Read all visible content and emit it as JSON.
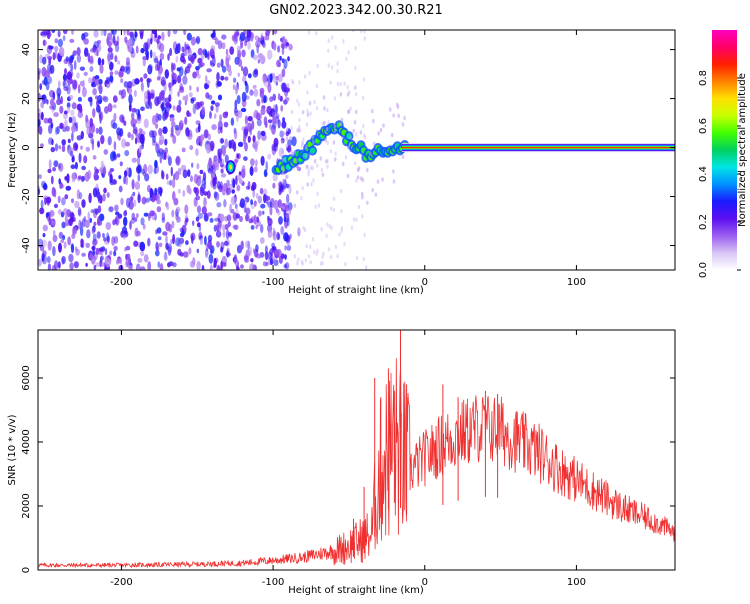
{
  "title": "GN02.2023.342.00.30.R21",
  "chart_data": [
    {
      "type": "heatmap",
      "xlabel": "Height of straight line (km)",
      "ylabel": "Frequency (Hz)",
      "xlim": [
        -255,
        165
      ],
      "ylim": [
        -50,
        48
      ],
      "x_ticks": [
        -200,
        -100,
        0,
        100
      ],
      "y_ticks": [
        -40,
        -20,
        0,
        20,
        40
      ],
      "grid": false,
      "colorbar": {
        "label": "Normalized spectral amplitude",
        "range": [
          0,
          1
        ],
        "ticks": [
          "0.0",
          "0.2",
          "0.4",
          "0.6",
          "0.8"
        ],
        "colors": [
          "#ffffff",
          "#d9c6f5",
          "#9b5cf0",
          "#5b0ff0",
          "#1a1aff",
          "#0090ff",
          "#00e5e5",
          "#00d060",
          "#40ff00",
          "#c8ff00",
          "#ffe000",
          "#ff8000",
          "#ff2000",
          "#ff0066",
          "#ff00c0"
        ]
      },
      "noise_region": {
        "x": [
          -255,
          -88
        ],
        "amplitude": [
          0.1,
          0.3
        ]
      },
      "ridge": [
        {
          "x": -128,
          "y": -8
        },
        {
          "x": -100,
          "y": -8
        },
        {
          "x": -90,
          "y": -6
        },
        {
          "x": -80,
          "y": -3
        },
        {
          "x": -72,
          "y": 2
        },
        {
          "x": -64,
          "y": 6
        },
        {
          "x": -56,
          "y": 8
        },
        {
          "x": -50,
          "y": 3
        },
        {
          "x": -44,
          "y": 0
        },
        {
          "x": -38,
          "y": -3
        },
        {
          "x": -32,
          "y": -2
        },
        {
          "x": -25,
          "y": -2
        },
        {
          "x": -18,
          "y": -1
        },
        {
          "x": -10,
          "y": 1
        },
        {
          "x": 0,
          "y": 0
        },
        {
          "x": 165,
          "y": 0
        }
      ],
      "carrier": {
        "x": [
          -15,
          165
        ],
        "y": 0
      }
    },
    {
      "type": "line",
      "xlabel": "Height of straight line (km)",
      "ylabel": "SNR (10 * v/v)",
      "xlim": [
        -255,
        165
      ],
      "ylim": [
        0,
        7500
      ],
      "x_ticks": [
        -200,
        -100,
        0,
        100
      ],
      "y_ticks": [
        0,
        2000,
        4000,
        6000
      ],
      "grid": false,
      "series": [
        {
          "color": "#f03030",
          "envelope": [
            {
              "x": -255,
              "y": 150
            },
            {
              "x": -200,
              "y": 150
            },
            {
              "x": -150,
              "y": 180
            },
            {
              "x": -120,
              "y": 220
            },
            {
              "x": -100,
              "y": 300
            },
            {
              "x": -80,
              "y": 400
            },
            {
              "x": -60,
              "y": 600
            },
            {
              "x": -45,
              "y": 900
            },
            {
              "x": -35,
              "y": 1200
            },
            {
              "x": -32,
              "y": 2500
            },
            {
              "x": -28,
              "y": 3500
            },
            {
              "x": -24,
              "y": 3800
            },
            {
              "x": -20,
              "y": 4200
            },
            {
              "x": -15,
              "y": 3800
            },
            {
              "x": -10,
              "y": 3200
            },
            {
              "x": 0,
              "y": 3600
            },
            {
              "x": 10,
              "y": 4000
            },
            {
              "x": 20,
              "y": 4300
            },
            {
              "x": 35,
              "y": 4600
            },
            {
              "x": 50,
              "y": 4500
            },
            {
              "x": 60,
              "y": 4200
            },
            {
              "x": 75,
              "y": 3800
            },
            {
              "x": 90,
              "y": 3200
            },
            {
              "x": 110,
              "y": 2600
            },
            {
              "x": 130,
              "y": 2000
            },
            {
              "x": 150,
              "y": 1600
            },
            {
              "x": 165,
              "y": 1200
            }
          ],
          "spikes": [
            {
              "x": -47,
              "y": 1600
            },
            {
              "x": -40,
              "y": 2600
            },
            {
              "x": -33,
              "y": 6000
            },
            {
              "x": -29,
              "y": 5400
            },
            {
              "x": -24,
              "y": 6300
            },
            {
              "x": -20,
              "y": 5600
            },
            {
              "x": -16,
              "y": 7500
            },
            {
              "x": -12,
              "y": 5800
            },
            {
              "x": 12,
              "y": 5800
            },
            {
              "x": 22,
              "y": 5400
            },
            {
              "x": 40,
              "y": 5600
            },
            {
              "x": 48,
              "y": 5500
            }
          ]
        }
      ]
    }
  ]
}
